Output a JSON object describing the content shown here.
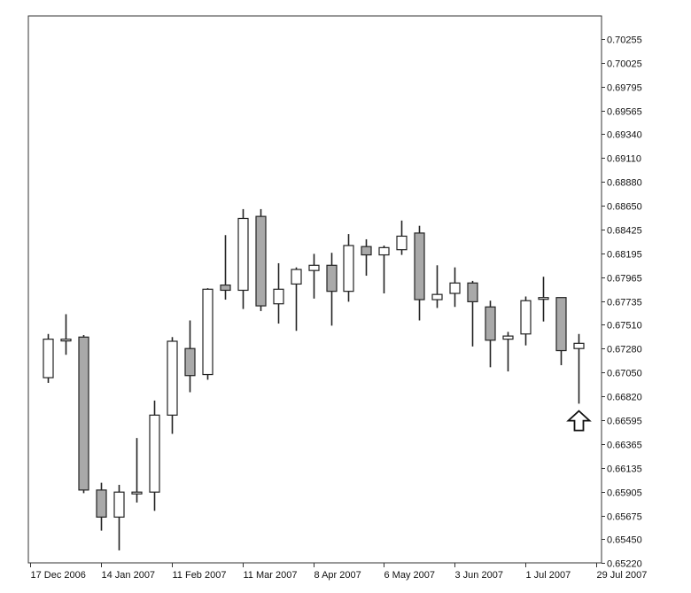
{
  "chart_data": {
    "type": "candlestick",
    "title": "",
    "xlabel": "",
    "ylabel": "",
    "ylim": [
      0.651,
      0.705
    ],
    "grid": false,
    "colors": {
      "bullish_body": "#ffffff",
      "bearish_body": "#a9a9a9",
      "outline": "#222222",
      "frame": "#333333"
    },
    "x_tick_labels": [
      "17 Dec 2006",
      "14 Jan 2007",
      "11 Feb 2007",
      "11 Mar 2007",
      "8 Apr 2007",
      "6 May 2007",
      "3 Jun 2007",
      "1 Jul 2007",
      "29 Jul 2007"
    ],
    "y_tick_labels": [
      "0.70255",
      "0.70025",
      "0.69795",
      "0.69565",
      "0.69340",
      "0.69110",
      "0.68880",
      "0.68650",
      "0.68425",
      "0.68195",
      "0.67965",
      "0.67735",
      "0.67510",
      "0.67280",
      "0.67050",
      "0.66820",
      "0.66595",
      "0.66365",
      "0.66135",
      "0.65905",
      "0.65675",
      "0.65450",
      "0.65220"
    ],
    "annotation": {
      "type": "up-arrow",
      "date": "2007-07-15",
      "value": 0.6668
    },
    "candles": [
      {
        "date": "2006-12-17",
        "open": 0.67,
        "high": 0.6742,
        "low": 0.6695,
        "close": 0.6737
      },
      {
        "date": "2006-12-24",
        "open": 0.6736,
        "high": 0.6761,
        "low": 0.6722,
        "close": 0.6737
      },
      {
        "date": "2006-12-31",
        "open": 0.6739,
        "high": 0.6741,
        "low": 0.6589,
        "close": 0.6592
      },
      {
        "date": "2007-01-07",
        "open": 0.6592,
        "high": 0.6599,
        "low": 0.6553,
        "close": 0.6566
      },
      {
        "date": "2007-01-14",
        "open": 0.6566,
        "high": 0.6597,
        "low": 0.6534,
        "close": 0.659
      },
      {
        "date": "2007-01-21",
        "open": 0.659,
        "high": 0.6642,
        "low": 0.658,
        "close": 0.659
      },
      {
        "date": "2007-01-28",
        "open": 0.659,
        "high": 0.6678,
        "low": 0.6572,
        "close": 0.6664
      },
      {
        "date": "2007-02-04",
        "open": 0.6664,
        "high": 0.6739,
        "low": 0.6646,
        "close": 0.6735
      },
      {
        "date": "2007-02-11",
        "open": 0.6728,
        "high": 0.6755,
        "low": 0.6686,
        "close": 0.6702
      },
      {
        "date": "2007-02-18",
        "open": 0.6703,
        "high": 0.6786,
        "low": 0.6698,
        "close": 0.6785
      },
      {
        "date": "2007-02-25",
        "open": 0.6789,
        "high": 0.6837,
        "low": 0.6775,
        "close": 0.6784
      },
      {
        "date": "2007-03-04",
        "open": 0.6784,
        "high": 0.6862,
        "low": 0.6766,
        "close": 0.6853
      },
      {
        "date": "2007-03-11",
        "open": 0.6855,
        "high": 0.6862,
        "low": 0.6764,
        "close": 0.6769
      },
      {
        "date": "2007-03-18",
        "open": 0.6771,
        "high": 0.681,
        "low": 0.6752,
        "close": 0.6785
      },
      {
        "date": "2007-03-25",
        "open": 0.679,
        "high": 0.6806,
        "low": 0.6745,
        "close": 0.6804
      },
      {
        "date": "2007-04-01",
        "open": 0.6803,
        "high": 0.6819,
        "low": 0.6776,
        "close": 0.6808
      },
      {
        "date": "2007-04-08",
        "open": 0.6808,
        "high": 0.682,
        "low": 0.675,
        "close": 0.6783
      },
      {
        "date": "2007-04-15",
        "open": 0.6783,
        "high": 0.6838,
        "low": 0.6773,
        "close": 0.6827
      },
      {
        "date": "2007-04-22",
        "open": 0.6826,
        "high": 0.6833,
        "low": 0.6798,
        "close": 0.6818
      },
      {
        "date": "2007-04-29",
        "open": 0.6818,
        "high": 0.6827,
        "low": 0.6781,
        "close": 0.6825
      },
      {
        "date": "2007-05-06",
        "open": 0.6823,
        "high": 0.6851,
        "low": 0.6818,
        "close": 0.6836
      },
      {
        "date": "2007-05-13",
        "open": 0.6839,
        "high": 0.6846,
        "low": 0.6755,
        "close": 0.6775
      },
      {
        "date": "2007-05-20",
        "open": 0.6775,
        "high": 0.6808,
        "low": 0.6767,
        "close": 0.678
      },
      {
        "date": "2007-05-27",
        "open": 0.6781,
        "high": 0.6806,
        "low": 0.6768,
        "close": 0.6791
      },
      {
        "date": "2007-06-03",
        "open": 0.6791,
        "high": 0.6793,
        "low": 0.673,
        "close": 0.6773
      },
      {
        "date": "2007-06-10",
        "open": 0.6768,
        "high": 0.6774,
        "low": 0.671,
        "close": 0.6736
      },
      {
        "date": "2007-06-17",
        "open": 0.6737,
        "high": 0.6744,
        "low": 0.6706,
        "close": 0.674
      },
      {
        "date": "2007-06-24",
        "open": 0.6742,
        "high": 0.6778,
        "low": 0.6731,
        "close": 0.6774
      },
      {
        "date": "2007-07-01",
        "open": 0.6776,
        "high": 0.6797,
        "low": 0.6754,
        "close": 0.6777
      },
      {
        "date": "2007-07-08",
        "open": 0.6777,
        "high": 0.6777,
        "low": 0.6712,
        "close": 0.6726
      },
      {
        "date": "2007-07-15",
        "open": 0.6728,
        "high": 0.6742,
        "low": 0.6675,
        "close": 0.6733
      }
    ]
  }
}
